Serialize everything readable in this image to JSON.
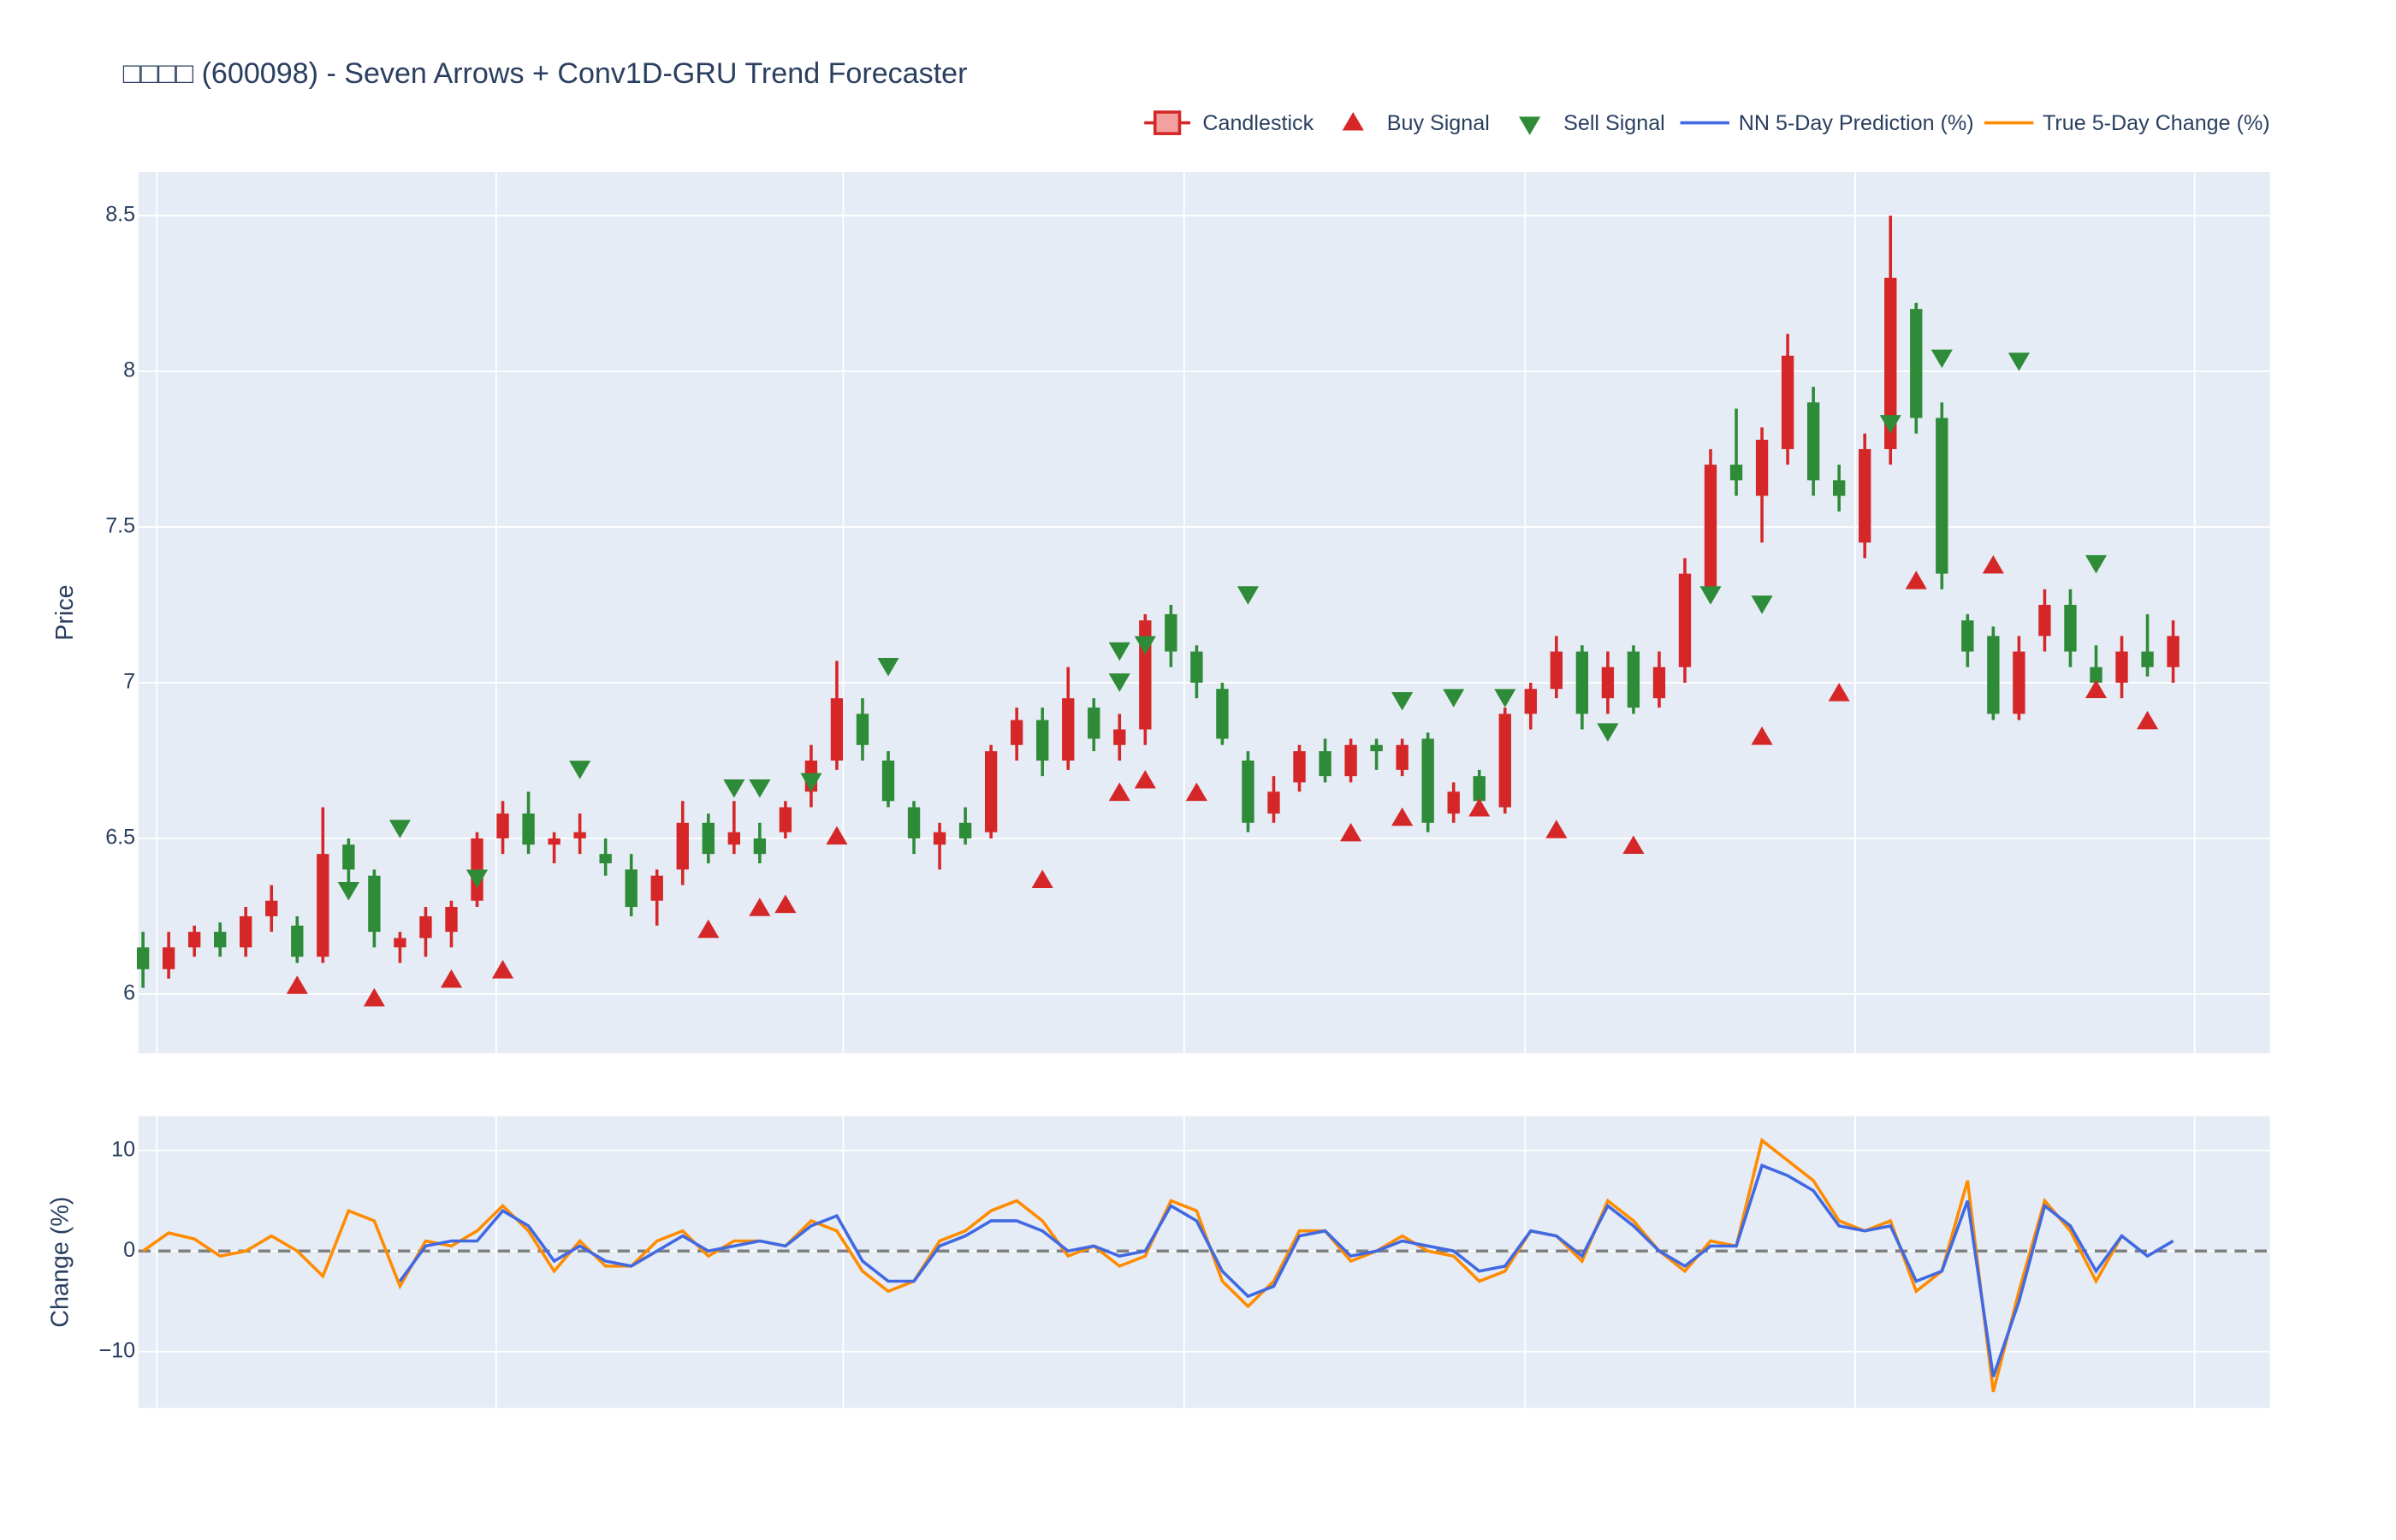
{
  "chart_data": [
    {
      "type": "candlestick",
      "title": "□□□□ (600098) - Seven Arrows + Conv1D-GRU Trend Forecaster",
      "ylabel": "Price",
      "name": "Candlestick",
      "increasing_color": "#d62728",
      "decreasing_color": "#2e8b37",
      "open": [
        6.15,
        6.08,
        6.15,
        6.2,
        6.15,
        6.25,
        6.22,
        6.12,
        6.48,
        6.38,
        6.15,
        6.18,
        6.2,
        6.3,
        6.5,
        6.58,
        6.48,
        6.5,
        6.45,
        6.4,
        6.3,
        6.4,
        6.55,
        6.48,
        6.5,
        6.52,
        6.65,
        6.75,
        6.9,
        6.75,
        6.6,
        6.48,
        6.55,
        6.52,
        6.8,
        6.88,
        6.75,
        6.92,
        6.8,
        6.85,
        7.22,
        7.1,
        6.98,
        6.75,
        6.58,
        6.68,
        6.78,
        6.7,
        6.8,
        6.72,
        6.82,
        6.58,
        6.7,
        6.6,
        6.9,
        6.98,
        7.1,
        6.95,
        7.1,
        6.95,
        7.05,
        7.3,
        7.7,
        7.6,
        7.75,
        7.9,
        7.65,
        7.45,
        7.75,
        8.2,
        7.85,
        7.2,
        7.15,
        6.9,
        7.15,
        7.25,
        7.05,
        7.0,
        7.1,
        7.05
      ],
      "high": [
        6.2,
        6.2,
        6.22,
        6.23,
        6.28,
        6.35,
        6.25,
        6.6,
        6.5,
        6.4,
        6.2,
        6.28,
        6.3,
        6.52,
        6.62,
        6.65,
        6.52,
        6.58,
        6.5,
        6.45,
        6.4,
        6.62,
        6.58,
        6.62,
        6.55,
        6.62,
        6.8,
        7.07,
        6.95,
        6.78,
        6.62,
        6.55,
        6.6,
        6.8,
        6.92,
        6.92,
        7.05,
        6.95,
        6.9,
        7.22,
        7.25,
        7.12,
        7.0,
        6.78,
        6.7,
        6.8,
        6.82,
        6.82,
        6.82,
        6.82,
        6.84,
        6.68,
        6.72,
        6.92,
        7.0,
        7.15,
        7.12,
        7.1,
        7.12,
        7.1,
        7.4,
        7.75,
        7.88,
        7.82,
        8.12,
        7.95,
        7.7,
        7.8,
        8.5,
        8.22,
        7.9,
        7.22,
        7.18,
        7.15,
        7.3,
        7.3,
        7.12,
        7.15,
        7.22,
        7.2
      ],
      "low": [
        6.02,
        6.05,
        6.12,
        6.12,
        6.12,
        6.2,
        6.1,
        6.1,
        6.35,
        6.15,
        6.1,
        6.12,
        6.15,
        6.28,
        6.45,
        6.45,
        6.42,
        6.45,
        6.38,
        6.25,
        6.22,
        6.35,
        6.42,
        6.45,
        6.42,
        6.5,
        6.6,
        6.72,
        6.75,
        6.6,
        6.45,
        6.4,
        6.48,
        6.5,
        6.75,
        6.7,
        6.72,
        6.78,
        6.75,
        6.8,
        7.05,
        6.95,
        6.8,
        6.52,
        6.55,
        6.65,
        6.68,
        6.68,
        6.72,
        6.7,
        6.52,
        6.55,
        6.6,
        6.58,
        6.85,
        6.95,
        6.85,
        6.9,
        6.9,
        6.92,
        7.0,
        7.28,
        7.6,
        7.45,
        7.7,
        7.6,
        7.55,
        7.4,
        7.7,
        7.8,
        7.3,
        7.05,
        6.88,
        6.88,
        7.1,
        7.05,
        6.98,
        6.95,
        7.02,
        7.0
      ],
      "close": [
        6.08,
        6.15,
        6.2,
        6.15,
        6.25,
        6.3,
        6.12,
        6.45,
        6.4,
        6.2,
        6.18,
        6.25,
        6.28,
        6.5,
        6.58,
        6.48,
        6.5,
        6.52,
        6.42,
        6.28,
        6.38,
        6.55,
        6.45,
        6.52,
        6.45,
        6.6,
        6.75,
        6.95,
        6.8,
        6.62,
        6.5,
        6.52,
        6.5,
        6.78,
        6.88,
        6.75,
        6.95,
        6.82,
        6.85,
        7.2,
        7.1,
        7.0,
        6.82,
        6.55,
        6.65,
        6.78,
        6.7,
        6.8,
        6.78,
        6.8,
        6.55,
        6.65,
        6.62,
        6.9,
        6.98,
        7.1,
        6.9,
        7.05,
        6.92,
        7.05,
        7.35,
        7.7,
        7.65,
        7.78,
        8.05,
        7.65,
        7.6,
        7.75,
        8.3,
        7.85,
        7.35,
        7.1,
        6.9,
        7.1,
        7.25,
        7.1,
        7.0,
        7.1,
        7.05,
        7.15
      ],
      "buy": {
        "name": "Buy Signal",
        "color": "#d62728",
        "x": [
          6,
          9,
          12,
          14,
          22,
          24,
          25,
          27,
          35,
          38,
          39,
          41,
          47,
          49,
          52,
          55,
          58,
          63,
          66,
          69,
          72,
          76,
          78
        ],
        "values": [
          6.03,
          5.99,
          6.05,
          6.08,
          6.21,
          6.28,
          6.29,
          6.51,
          6.37,
          6.65,
          6.69,
          6.65,
          6.52,
          6.57,
          6.6,
          6.53,
          6.48,
          6.83,
          6.97,
          7.33,
          7.38,
          6.98,
          6.88
        ]
      },
      "sell": {
        "name": "Sell Signal",
        "color": "#2e8b37",
        "x": [
          8,
          10,
          13,
          17,
          23,
          24,
          26,
          29,
          38,
          38,
          39,
          43,
          49,
          51,
          53,
          57,
          61,
          63,
          68,
          70,
          73,
          76
        ],
        "values": [
          6.33,
          6.53,
          6.37,
          6.72,
          6.66,
          6.66,
          6.68,
          7.05,
          7.0,
          7.1,
          7.12,
          7.28,
          6.94,
          6.95,
          6.95,
          6.84,
          7.28,
          7.25,
          7.83,
          8.04,
          8.03,
          7.38
        ]
      },
      "ylim": [
        5.81,
        8.64
      ],
      "yticks": [
        6,
        6.5,
        7,
        7.5,
        8,
        8.5
      ],
      "grid": true
    },
    {
      "type": "line",
      "ylabel": "Change (%)",
      "reference_line": 0,
      "series": [
        {
          "name": "NN 5-Day Prediction (%)",
          "color": "#4169e1",
          "values": [
            null,
            null,
            null,
            null,
            null,
            null,
            null,
            null,
            null,
            null,
            -3,
            0.5,
            1,
            1,
            4,
            2.5,
            -1,
            0.5,
            -1,
            -1.5,
            0,
            1.5,
            0,
            0.5,
            1,
            0.5,
            2.5,
            3.5,
            -1,
            -3,
            -3,
            0.5,
            1.5,
            3,
            3,
            2,
            0,
            0.5,
            -0.5,
            0,
            4.5,
            3,
            -2,
            -4.5,
            -3.5,
            1.5,
            2,
            -0.5,
            0,
            1,
            0.5,
            0,
            -2,
            -1.5,
            2,
            1.5,
            -0.5,
            4.5,
            2.5,
            0,
            -1.5,
            0.5,
            0.5,
            8.5,
            7.5,
            6,
            2.5,
            2,
            2.5,
            -3,
            -2,
            5,
            -12.5,
            -5,
            4.5,
            2.5,
            -2,
            1.5,
            -0.5,
            1
          ]
        },
        {
          "name": "True 5-Day Change (%)",
          "color": "#ff8c00",
          "values": [
            0,
            1.8,
            1.2,
            -0.5,
            0,
            1.5,
            0,
            -2.5,
            4,
            3,
            -3.5,
            1,
            0.5,
            2,
            4.5,
            2,
            -2,
            1,
            -1.5,
            -1.5,
            1,
            2,
            -0.5,
            1,
            1,
            0.5,
            3,
            2,
            -2,
            -4,
            -3,
            1,
            2,
            4,
            5,
            3,
            -0.5,
            0.5,
            -1.5,
            -0.5,
            5,
            4,
            -3,
            -5.5,
            -3,
            2,
            2,
            -1,
            0,
            1.5,
            0,
            -0.5,
            -3,
            -2,
            2,
            1.5,
            -1,
            5,
            3,
            0,
            -2,
            1,
            0.5,
            11,
            9,
            7,
            3,
            2,
            3,
            -4,
            -2,
            7,
            -14,
            -4,
            5,
            2,
            -3,
            1.5,
            null,
            null
          ]
        }
      ],
      "ylim": [
        -15.6,
        13.4
      ],
      "yticks": [
        10,
        0,
        {
          "value": -10,
          "label": "−10"
        }
      ],
      "grid": true
    }
  ]
}
